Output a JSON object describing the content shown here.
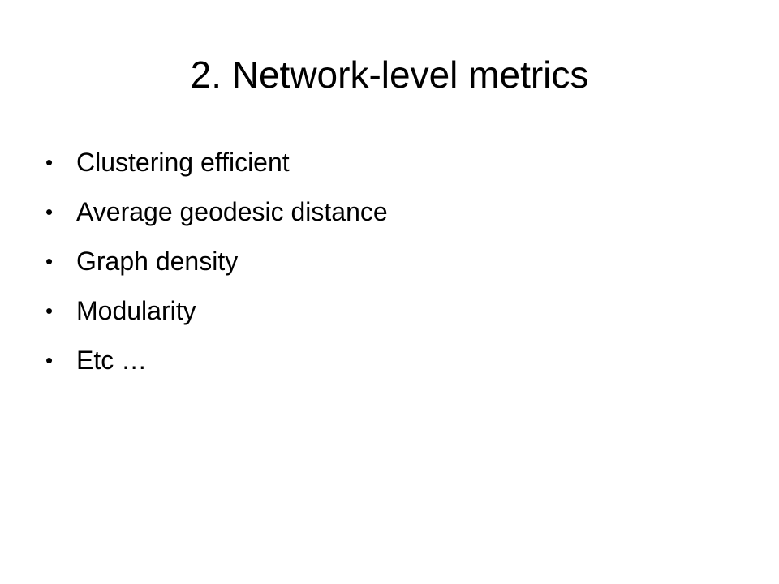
{
  "slide": {
    "title": "2. Network-level metrics",
    "bullet_symbol": "•",
    "bullets": [
      "Clustering efficient",
      "Average geodesic distance",
      "Graph density",
      "Modularity",
      "Etc …"
    ]
  }
}
